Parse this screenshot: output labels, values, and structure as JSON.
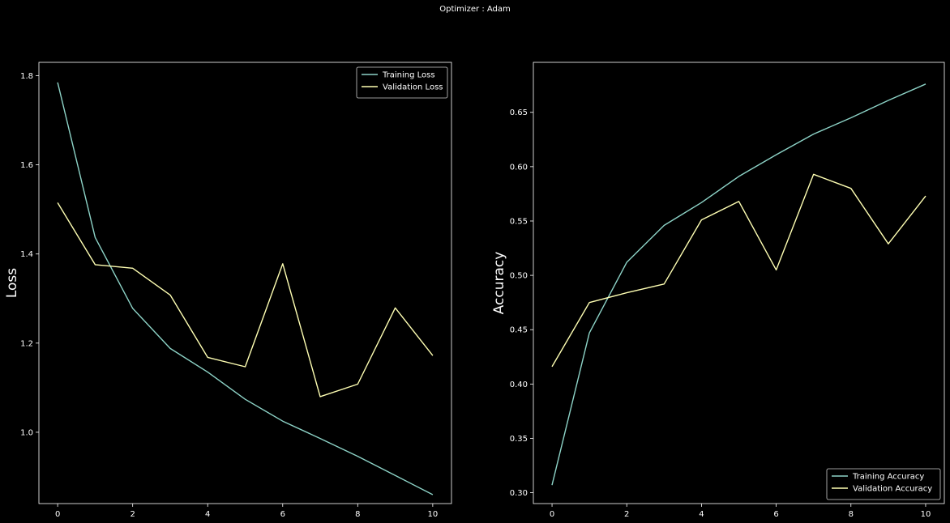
{
  "figure": {
    "suptitle": "Optimizer : Adam",
    "background": "#000000"
  },
  "chart_data": [
    {
      "type": "line",
      "title": "",
      "xlabel": "",
      "ylabel": "Loss",
      "x": [
        0,
        1,
        2,
        3,
        4,
        5,
        6,
        7,
        8,
        9,
        10
      ],
      "xticks": [
        0,
        2,
        4,
        6,
        8,
        10
      ],
      "xlim": [
        -0.5,
        10.5
      ],
      "yticks": [
        1.0,
        1.2,
        1.4,
        1.6,
        1.8
      ],
      "ylim": [
        0.84,
        1.83
      ],
      "grid": false,
      "legend_position": "upper right",
      "series": [
        {
          "name": "Training Loss",
          "color": "#8dd3c7",
          "values": [
            1.785,
            1.437,
            1.278,
            1.188,
            1.135,
            1.074,
            1.025,
            0.986,
            0.946,
            0.903,
            0.86
          ]
        },
        {
          "name": "Validation Loss",
          "color": "#ffffb3",
          "values": [
            1.515,
            1.376,
            1.368,
            1.308,
            1.168,
            1.147,
            1.378,
            1.08,
            1.108,
            1.279,
            1.172
          ]
        }
      ]
    },
    {
      "type": "line",
      "title": "",
      "xlabel": "",
      "ylabel": "Accuracy",
      "x": [
        0,
        1,
        2,
        3,
        4,
        5,
        6,
        7,
        8,
        9,
        10
      ],
      "xticks": [
        0,
        2,
        4,
        6,
        8,
        10
      ],
      "xlim": [
        -0.5,
        10.5
      ],
      "yticks": [
        0.3,
        0.35,
        0.4,
        0.45,
        0.5,
        0.55,
        0.6,
        0.65
      ],
      "ylim": [
        0.29,
        0.696
      ],
      "grid": false,
      "legend_position": "lower right",
      "series": [
        {
          "name": "Training Accuracy",
          "color": "#8dd3c7",
          "values": [
            0.307,
            0.447,
            0.512,
            0.546,
            0.567,
            0.591,
            0.611,
            0.63,
            0.645,
            0.661,
            0.676
          ]
        },
        {
          "name": "Validation Accuracy",
          "color": "#ffffb3",
          "values": [
            0.416,
            0.475,
            0.484,
            0.492,
            0.551,
            0.568,
            0.505,
            0.593,
            0.58,
            0.529,
            0.573
          ]
        }
      ]
    }
  ]
}
